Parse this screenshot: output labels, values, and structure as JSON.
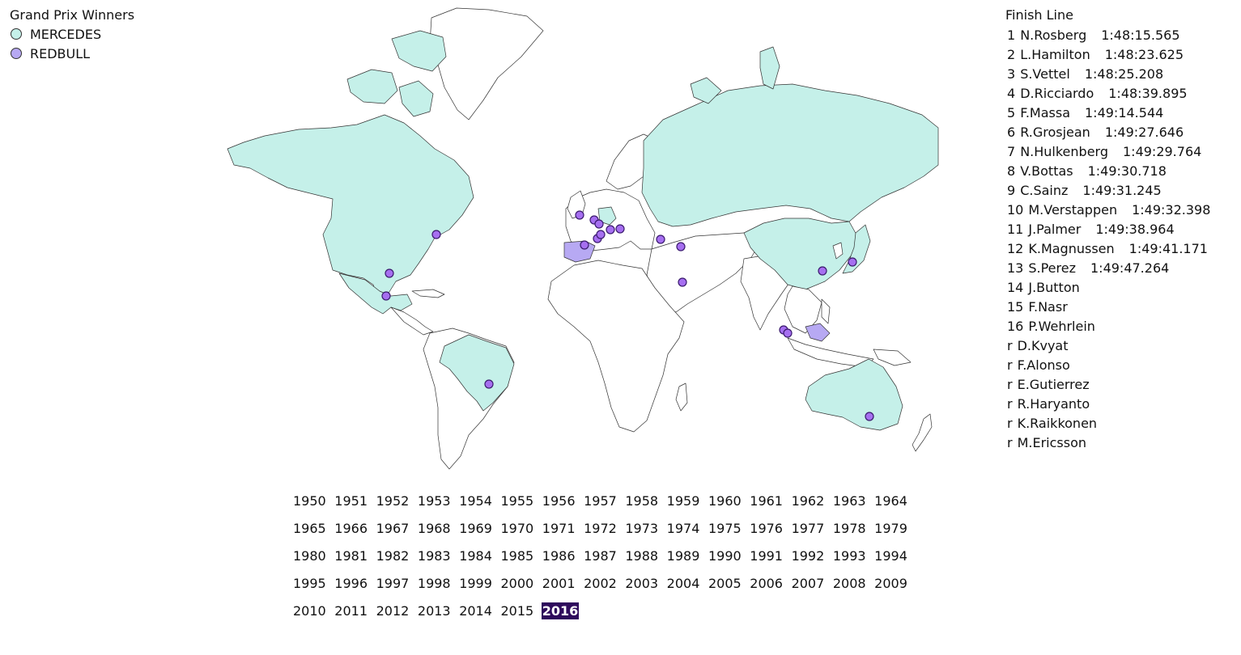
{
  "legend": {
    "title": "Grand Prix Winners",
    "items": [
      {
        "label": "MERCEDES",
        "color": "#c5f0e9"
      },
      {
        "label": "REDBULL",
        "color": "#b7a9f3"
      }
    ]
  },
  "finish": {
    "title": "Finish Line",
    "rows": [
      {
        "pos": "1",
        "driver": "N.Rosberg",
        "time": "1:48:15.565"
      },
      {
        "pos": "2",
        "driver": "L.Hamilton",
        "time": "1:48:23.625"
      },
      {
        "pos": "3",
        "driver": "S.Vettel",
        "time": "1:48:25.208"
      },
      {
        "pos": "4",
        "driver": "D.Ricciardo",
        "time": "1:48:39.895"
      },
      {
        "pos": "5",
        "driver": "F.Massa",
        "time": "1:49:14.544"
      },
      {
        "pos": "6",
        "driver": "R.Grosjean",
        "time": "1:49:27.646"
      },
      {
        "pos": "7",
        "driver": "N.Hulkenberg",
        "time": "1:49:29.764"
      },
      {
        "pos": "8",
        "driver": "V.Bottas",
        "time": "1:49:30.718"
      },
      {
        "pos": "9",
        "driver": "C.Sainz",
        "time": "1:49:31.245"
      },
      {
        "pos": "10",
        "driver": "M.Verstappen",
        "time": "1:49:32.398"
      },
      {
        "pos": "11",
        "driver": "J.Palmer",
        "time": "1:49:38.964"
      },
      {
        "pos": "12",
        "driver": "K.Magnussen",
        "time": "1:49:41.171"
      },
      {
        "pos": "13",
        "driver": "S.Perez",
        "time": "1:49:47.264"
      },
      {
        "pos": "14",
        "driver": "J.Button",
        "time": ""
      },
      {
        "pos": "15",
        "driver": "F.Nasr",
        "time": ""
      },
      {
        "pos": "16",
        "driver": "P.Wehrlein",
        "time": ""
      },
      {
        "pos": "r",
        "driver": "D.Kvyat",
        "time": ""
      },
      {
        "pos": "r",
        "driver": "F.Alonso",
        "time": ""
      },
      {
        "pos": "r",
        "driver": "E.Gutierrez",
        "time": ""
      },
      {
        "pos": "r",
        "driver": "R.Haryanto",
        "time": ""
      },
      {
        "pos": "r",
        "driver": "K.Raikkonen",
        "time": ""
      },
      {
        "pos": "r",
        "driver": "M.Ericsson",
        "time": ""
      }
    ]
  },
  "map": {
    "colors": {
      "mercedes": "#c5f0e9",
      "redbull": "#b7a9f3",
      "marker": "#a66ff0",
      "marker_stroke": "#3a1a6e",
      "border": "#333333"
    }
  },
  "years": {
    "list": [
      "1950",
      "1951",
      "1952",
      "1953",
      "1954",
      "1955",
      "1956",
      "1957",
      "1958",
      "1959",
      "1960",
      "1961",
      "1962",
      "1963",
      "1964",
      "1965",
      "1966",
      "1967",
      "1968",
      "1969",
      "1970",
      "1971",
      "1972",
      "1973",
      "1974",
      "1975",
      "1976",
      "1977",
      "1978",
      "1979",
      "1980",
      "1981",
      "1982",
      "1983",
      "1984",
      "1985",
      "1986",
      "1987",
      "1988",
      "1989",
      "1990",
      "1991",
      "1992",
      "1993",
      "1994",
      "1995",
      "1996",
      "1997",
      "1998",
      "1999",
      "2000",
      "2001",
      "2002",
      "2003",
      "2004",
      "2005",
      "2006",
      "2007",
      "2008",
      "2009",
      "2010",
      "2011",
      "2012",
      "2013",
      "2014",
      "2015",
      "2016"
    ],
    "selected": "2016"
  }
}
